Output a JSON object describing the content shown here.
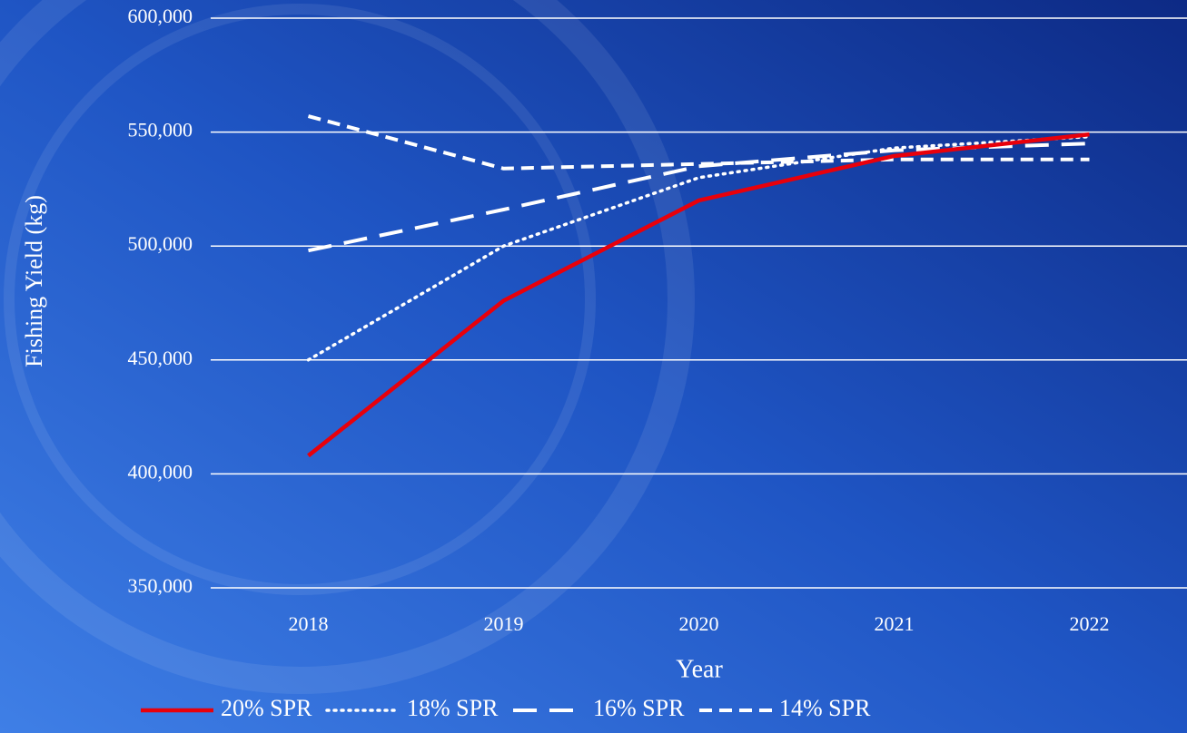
{
  "chart_data": {
    "type": "line",
    "x_label": "Year",
    "y_label": "Fishing Yield (kg)",
    "categories": [
      "2018",
      "2019",
      "2020",
      "2021",
      "2022"
    ],
    "ylim": [
      350000,
      600000
    ],
    "yticks": [
      {
        "value": 350000,
        "label": "350,000"
      },
      {
        "value": 400000,
        "label": "400,000"
      },
      {
        "value": 450000,
        "label": "450,000"
      },
      {
        "value": 500000,
        "label": "500,000"
      },
      {
        "value": 550000,
        "label": "550,000"
      },
      {
        "value": 600000,
        "label": "600,000"
      }
    ],
    "grid": true,
    "legend": "bottom",
    "series": [
      {
        "name": "20% SPR",
        "color": "#e8000b",
        "dash": "solid",
        "values": [
          408000,
          476000,
          520000,
          539500,
          549000
        ]
      },
      {
        "name": "18% SPR",
        "color": "#ffffff",
        "dash": "dotted",
        "values": [
          450000,
          500000,
          530000,
          543000,
          548000
        ]
      },
      {
        "name": "16% SPR",
        "color": "#ffffff",
        "dash": "long-dash",
        "values": [
          498000,
          516000,
          535000,
          542000,
          545000
        ]
      },
      {
        "name": "14% SPR",
        "color": "#ffffff",
        "dash": "dash",
        "values": [
          557000,
          534000,
          536000,
          538000,
          538000
        ]
      }
    ]
  }
}
